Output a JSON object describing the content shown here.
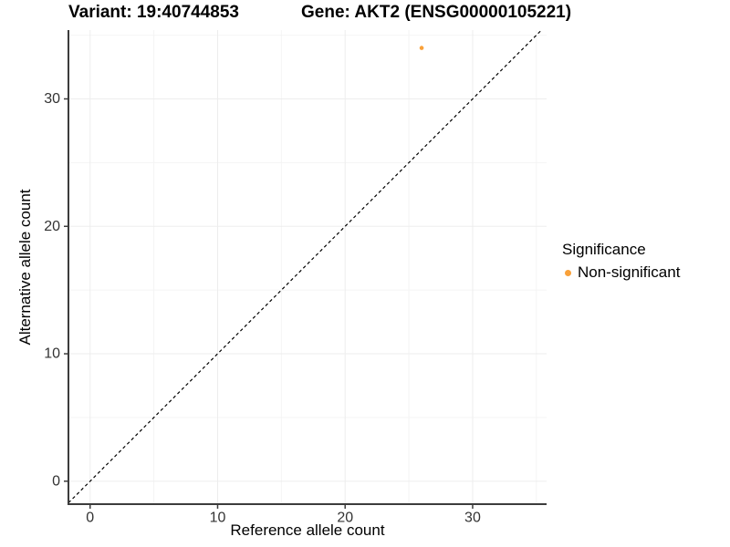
{
  "chart_data": {
    "type": "scatter",
    "title_left": "Variant: 19:40744853",
    "title_right": "Gene: AKT2 (ENSG00000105221)",
    "xlabel": "Reference allele count",
    "ylabel": "Alternative allele count",
    "xlim": [
      -1.7,
      35.8
    ],
    "ylim": [
      -1.8,
      35.4
    ],
    "xticks": [
      0,
      10,
      20,
      30
    ],
    "yticks": [
      0,
      10,
      20,
      30
    ],
    "minor_xticks": [
      5,
      15,
      25,
      35
    ],
    "minor_yticks": [
      5,
      15,
      25,
      35
    ],
    "grid": true,
    "points": [
      {
        "x": 26,
        "y": 34,
        "series": "Non-significant"
      }
    ],
    "identity_line": {
      "slope": 1,
      "intercept": 0,
      "style": "dashed"
    },
    "legend": {
      "position": "right",
      "title": "Significance",
      "items": [
        {
          "label": "Non-significant",
          "color": "#F9A13A"
        }
      ]
    },
    "colors": {
      "point": "#F9A13A",
      "axis_line": "#3c3c3c",
      "tick_text": "#333333",
      "grid_major": "#ededed",
      "grid_minor": "#f4f4f4",
      "identity_line": "#000000",
      "background": "#ffffff"
    }
  }
}
